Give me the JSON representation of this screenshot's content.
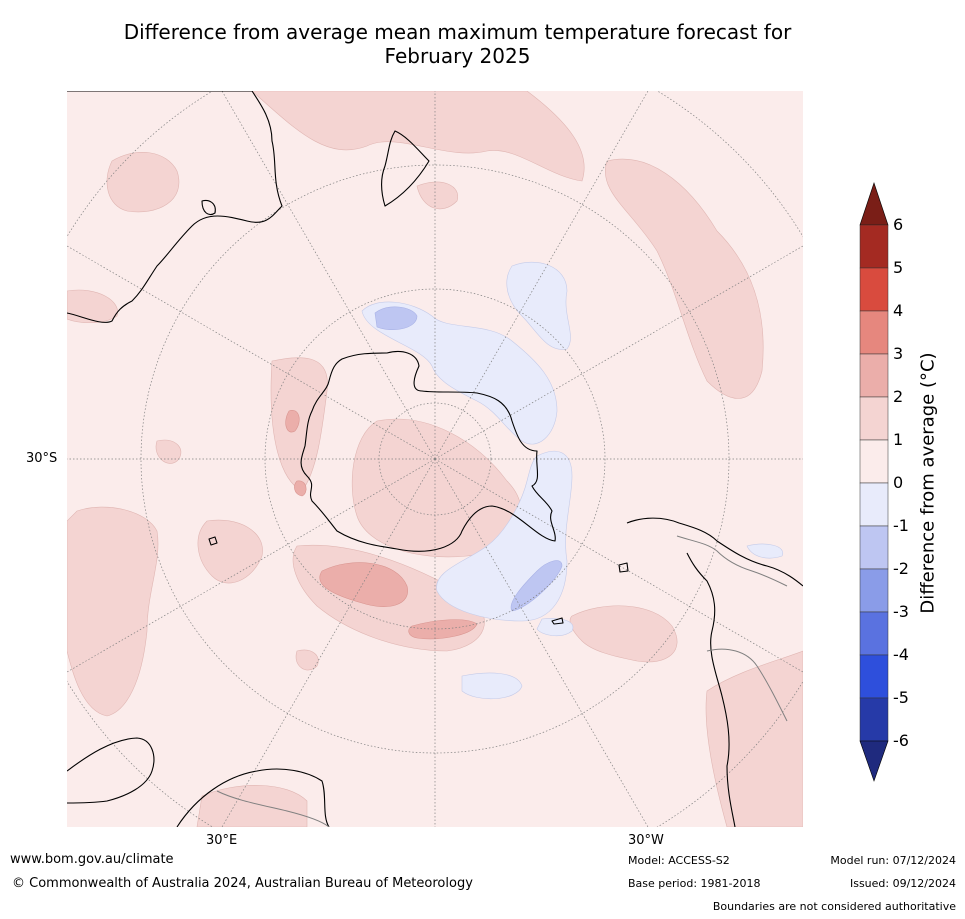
{
  "title": {
    "line1": "Difference from average mean maximum temperature forecast for",
    "line2": "February 2025"
  },
  "map": {
    "projection": "south-polar-stereographic",
    "lat_label": "30°S",
    "lon_labels": [
      "30°E",
      "30°W"
    ],
    "colors": {
      "ocean_base": "#fbeceb",
      "warm_1_2": "#f4d4d2",
      "warm_2_3": "#ebaeaa",
      "cool_0_m1": "#e8ebfb",
      "cool_m1_m2": "#bec6f2",
      "coast": "#000000",
      "border": "#808080",
      "grid": "#808080"
    }
  },
  "colorbar": {
    "label": "Difference from average (°C)",
    "ticks": [
      "6",
      "5",
      "4",
      "3",
      "2",
      "1",
      "0",
      "-1",
      "-2",
      "-3",
      "-4",
      "-5",
      "-6"
    ],
    "colors": [
      "#a42a22",
      "#d94b3e",
      "#e6877e",
      "#ebaeaa",
      "#f4d4d2",
      "#fbeceb",
      "#e8ebfb",
      "#bec6f2",
      "#8a9ce8",
      "#5a72e0",
      "#2e4fdc",
      "#263aa8"
    ],
    "over_color": "#7a1e17",
    "under_color": "#1f2a7e"
  },
  "footer": {
    "website": "www.bom.gov.au/climate",
    "copyright": "© Commonwealth of Australia 2024, Australian Bureau of Meteorology",
    "model": "Model: ACCESS-S2",
    "base_period": "Base period: 1981-2018",
    "model_run": "Model run: 07/12/2024",
    "issued": "Issued: 09/12/2024",
    "disclaimer": "Boundaries are not considered authoritative"
  }
}
